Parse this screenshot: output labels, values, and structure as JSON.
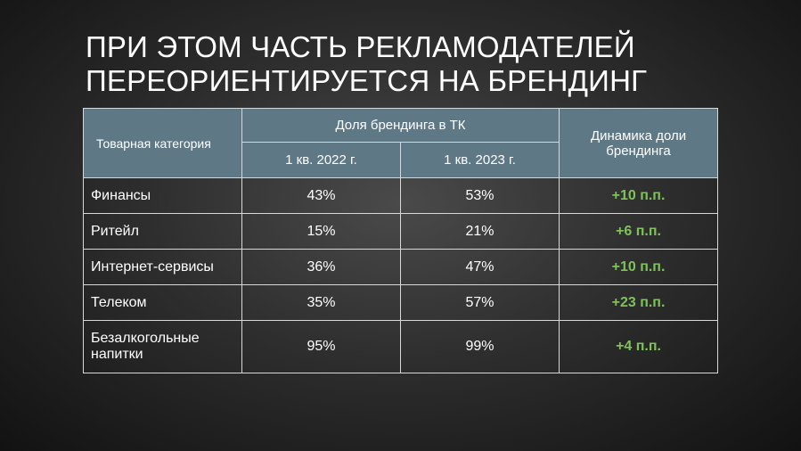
{
  "title": {
    "line1": "ПРИ ЭТОМ ЧАСТЬ РЕКЛАМОДАТЕЛЕЙ",
    "line2": "ПЕРЕОРИЕНТИРУЕТСЯ НА БРЕНДИНГ"
  },
  "table": {
    "headers": {
      "category": "Товарная категория",
      "share_group": "Доля брендинга в ТК",
      "q1_2022": "1 кв. 2022 г.",
      "q1_2023": "1 кв. 2023 г.",
      "dynamics": "Динамика доли брендинга"
    },
    "rows": [
      {
        "category": "Финансы",
        "q1_2022": "43%",
        "q1_2023": "53%",
        "dynamics": "+10 п.п."
      },
      {
        "category": "Ритейл",
        "q1_2022": "15%",
        "q1_2023": "21%",
        "dynamics": "+6 п.п."
      },
      {
        "category": "Интернет-сервисы",
        "q1_2022": "36%",
        "q1_2023": "47%",
        "dynamics": "+10 п.п."
      },
      {
        "category": "Телеком",
        "q1_2022": "35%",
        "q1_2023": "57%",
        "dynamics": "+23 п.п."
      },
      {
        "category": "Безалкогольные напитки",
        "q1_2022": "95%",
        "q1_2023": "99%",
        "dynamics": "+4 п.п."
      }
    ]
  },
  "colors": {
    "header_bg": "#5e7886",
    "positive": "#7fc25a"
  }
}
